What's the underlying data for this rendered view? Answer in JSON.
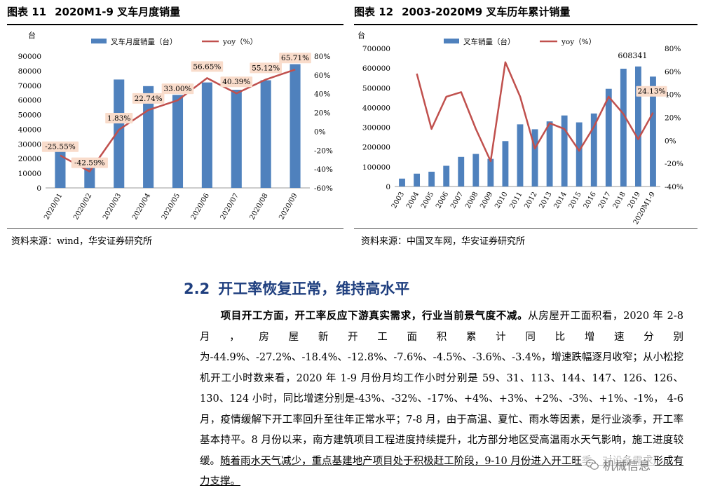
{
  "figure1": {
    "label": "图表 11",
    "title": "2020M1-9 叉车月度销量",
    "unit": "台",
    "legend_bar": "叉车月度销量（台）",
    "legend_line": "yoy（%）",
    "source": "资料来源：wind，华安证券研究所"
  },
  "figure2": {
    "label": "图表 12",
    "title": "2003-2020M9 叉车历年累计销量",
    "unit": "台",
    "legend_bar": "叉车销量（台）",
    "legend_line": "yoy（%）",
    "source": "资料来源：中国叉车网，华安证券研究所"
  },
  "chart_data": [
    {
      "type": "bar",
      "categories": [
        "2020/01",
        "2020/02",
        "2020/03",
        "2020/04",
        "2020/05",
        "2020/06",
        "2020/07",
        "2020/08",
        "2020/09"
      ],
      "series": [
        {
          "name": "叉车月度销量（台）",
          "axis": "left",
          "color": "#4f81bd",
          "values": [
            25000,
            14000,
            74000,
            69500,
            63500,
            72000,
            67000,
            73500,
            84500
          ]
        },
        {
          "name": "yoy（%）",
          "axis": "right",
          "type": "line",
          "color": "#c0504d",
          "values": [
            -25.55,
            -42.59,
            1.83,
            22.74,
            33.0,
            56.65,
            40.39,
            55.12,
            65.71
          ],
          "labels": [
            "-25.55%",
            "-42.59%",
            "1.83%",
            "22.74%",
            "33.00%",
            "56.65%",
            "40.39%",
            "55.12%",
            "65.71%"
          ]
        }
      ],
      "ylabel": "台",
      "ylim": [
        0,
        90000
      ],
      "yticks": [
        "0",
        "10000",
        "20000",
        "30000",
        "40000",
        "50000",
        "60000",
        "70000",
        "80000",
        "90000"
      ],
      "y2lim": [
        -60,
        80
      ],
      "y2ticks": [
        "-60%",
        "-40%",
        "-20%",
        "0%",
        "20%",
        "40%",
        "60%",
        "80%"
      ],
      "legend": "top"
    },
    {
      "type": "bar",
      "categories": [
        "2003",
        "2004",
        "2005",
        "2006",
        "2007",
        "2008",
        "2009",
        "2010",
        "2011",
        "2012",
        "2013",
        "2014",
        "2015",
        "2016",
        "2017",
        "2018",
        "2019",
        "2020M1-9"
      ],
      "series": [
        {
          "name": "叉车销量（台）",
          "axis": "left",
          "color": "#4f81bd",
          "values": [
            40000,
            65000,
            75000,
            105000,
            150000,
            165000,
            140000,
            230000,
            315000,
            290000,
            330000,
            360000,
            325000,
            370000,
            495000,
            597000,
            608341,
            557000
          ]
        },
        {
          "name": "yoy（%）",
          "axis": "right",
          "type": "line",
          "color": "#c0504d",
          "values": [
            null,
            58,
            10,
            38,
            42,
            10,
            -18,
            68,
            38,
            -7,
            15,
            10,
            -9,
            12,
            38,
            23,
            1,
            24.13
          ]
        }
      ],
      "data_labels": {
        "peak": "608341",
        "last_yoy": "24.13%"
      },
      "ylabel": "台",
      "ylim": [
        0,
        700000
      ],
      "yticks": [
        "0",
        "100000",
        "200000",
        "300000",
        "400000",
        "500000",
        "600000",
        "700000"
      ],
      "y2lim": [
        -40,
        80
      ],
      "y2ticks": [
        "-40%",
        "-20%",
        "0%",
        "20%",
        "40%",
        "60%",
        "80%"
      ],
      "legend": "top"
    }
  ],
  "section": {
    "number": "2.2",
    "title": "开工率恢复正常，维持高水平"
  },
  "body": {
    "lead_bold": "项目开工方面，开工率反应下游真实需求，行业当前景气度不减。",
    "text_plain": "从房屋开工面积看，2020 年 2-8 月，房屋新开工面积累计同比增速分别为-44.9%、-27.2%、-18.4%、-12.8%、-7.6%、-4.5%、-3.6%、-3.4%，增速跌幅逐月收窄；从小松挖机开工小时数来看，2020 年 1-9 月份月均工作小时分别是 59、31、113、144、147、126、126、130、124 小时，同比增速分别是-43%、-32%、-17%、+4%、+3%、+2%、-3%、+1%、-1%， 4-6 月，疫情缓解下开工率回升至往年正常水平；7-8 月，由于高温、夏忙、雨水等因素，是行业淡季，开工率基本持平。8 月份以来，南方建筑项目工程进度持续提升，北方部分地区受高温雨水天气影响，施工进度较缓。",
    "text_underlined": "随着雨水天气减少，重点基建地产项目处于积极赶工阶段，9-10 月份进入开工旺季，对设备需求形成有力支撑。"
  },
  "watermark": {
    "text": "机械信息",
    "icon": "wechat-icon"
  }
}
